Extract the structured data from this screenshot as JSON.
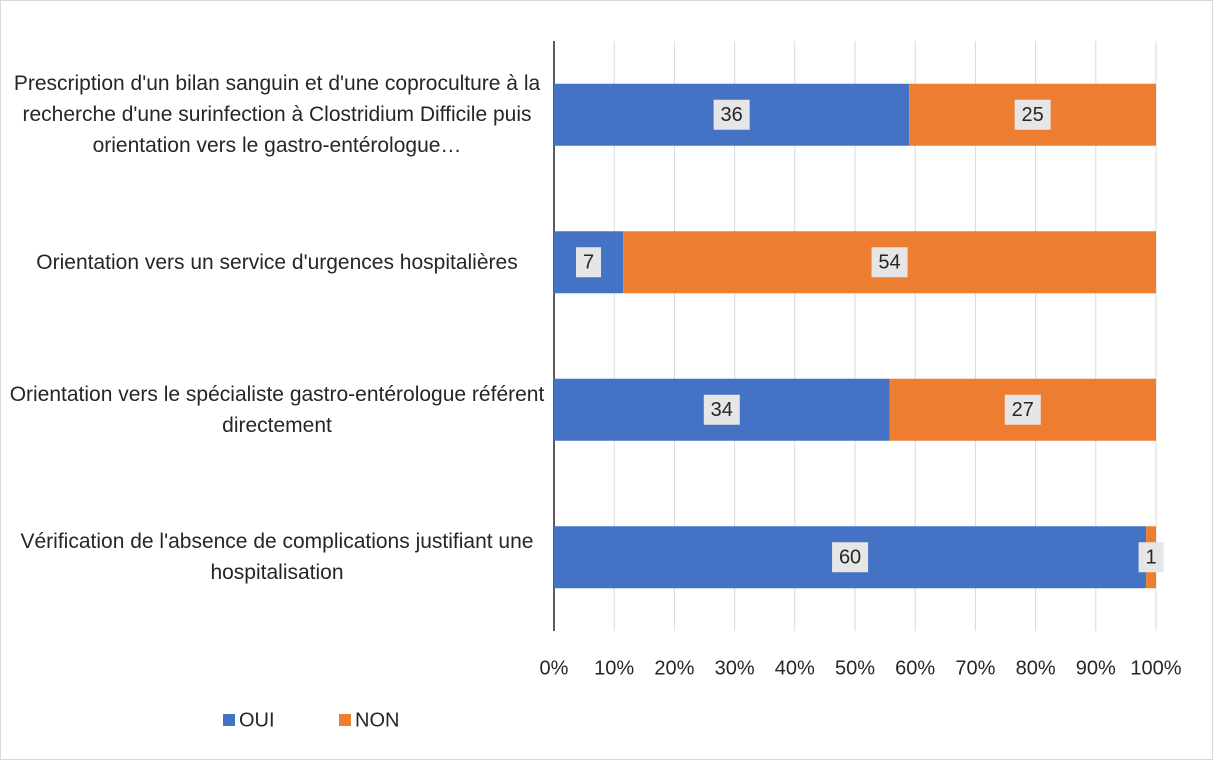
{
  "chart_data": {
    "type": "bar",
    "orientation": "horizontal",
    "stacking": "percent",
    "categories": [
      "Prescription d'un bilan sanguin et d'une coproculture à la recherche d'une surinfection à Clostridium Difficile puis orientation vers le gastro-entérologue…",
      "Orientation vers un service d'urgences hospitalières",
      "Orientation vers le spécialiste gastro-entérologue référent directement",
      "Vérification de l'absence de complications justifiant une hospitalisation"
    ],
    "series": [
      {
        "name": "OUI",
        "color": "#4472c4",
        "values": [
          36,
          7,
          34,
          60
        ]
      },
      {
        "name": "NON",
        "color": "#ed7d31",
        "values": [
          25,
          54,
          27,
          1
        ]
      }
    ],
    "xlim": [
      0,
      100
    ],
    "xticks": [
      {
        "value": 0,
        "label": "0%"
      },
      {
        "value": 10,
        "label": "10%"
      },
      {
        "value": 20,
        "label": "20%"
      },
      {
        "value": 30,
        "label": "30%"
      },
      {
        "value": 40,
        "label": "40%"
      },
      {
        "value": 50,
        "label": "50%"
      },
      {
        "value": 60,
        "label": "60%"
      },
      {
        "value": 70,
        "label": "70%"
      },
      {
        "value": 80,
        "label": "80%"
      },
      {
        "value": 90,
        "label": "90%"
      },
      {
        "value": 100,
        "label": "100%"
      }
    ],
    "grid": true,
    "legend": "bottom-left"
  }
}
